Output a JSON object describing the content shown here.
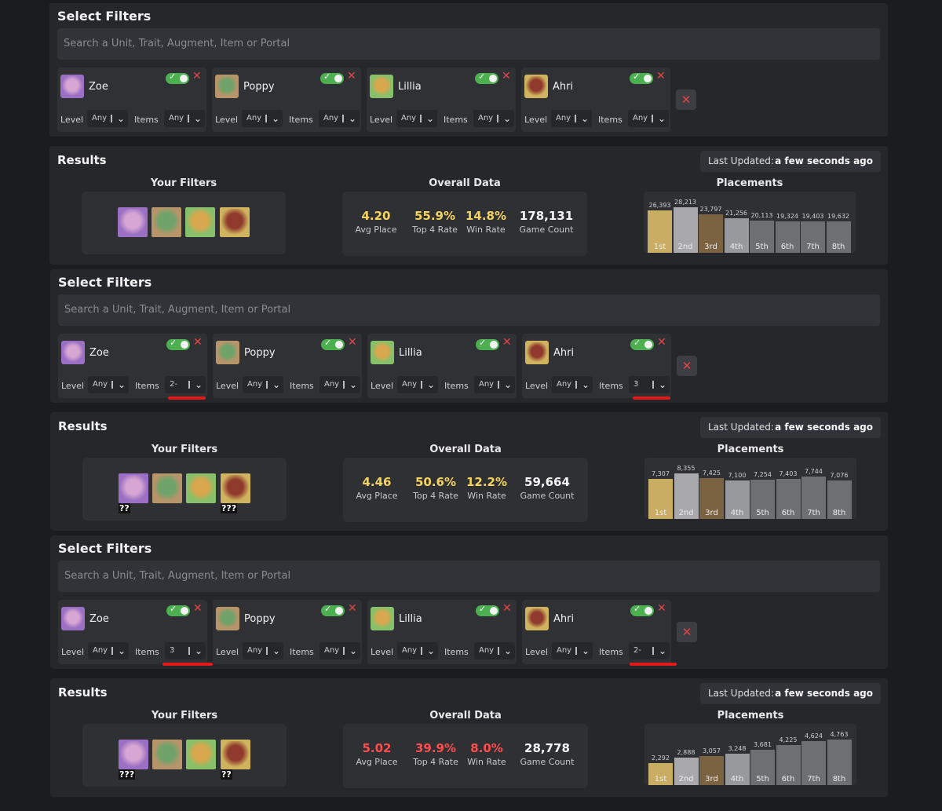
{
  "search_placeholder": "Search a Unit, Trait, Augment, Item or Portal",
  "units": [
    {
      "name": "Zoe",
      "skin": "#d7a6d3",
      "frame": "#9a6fc4"
    },
    {
      "name": "Poppy",
      "skin": "#6fa36a",
      "frame": "#b8946a"
    },
    {
      "name": "Lillia",
      "skin": "#d9a74d",
      "frame": "#86c06a"
    },
    {
      "name": "Ahri",
      "skin": "#8f3a2c",
      "frame": "#d0b35e"
    }
  ],
  "colors": {
    "yellow": "#f4d35e",
    "red": "#ff4d4d",
    "white": "#f5f5f5",
    "toggle": "#4caf50",
    "remove": "#e24545",
    "bars": [
      "#c9ad62",
      "#a9a9ab",
      "#7b6240",
      "#97999d",
      "#6e6f73",
      "#6e6f73",
      "#6e6f73",
      "#6e6f73"
    ]
  },
  "sections": [
    {
      "filters": {
        "title": "Select Filters",
        "chips": [
          {
            "unit": "Zoe",
            "level_label": "Level",
            "level_value": "Any",
            "items_label": "Items",
            "items_value": "Any"
          },
          {
            "unit": "Poppy",
            "level_label": "Level",
            "level_value": "Any",
            "items_label": "Items",
            "items_value": "Any"
          },
          {
            "unit": "Lillia",
            "level_label": "Level",
            "level_value": "Any",
            "items_label": "Items",
            "items_value": "Any"
          },
          {
            "unit": "Ahri",
            "level_label": "Level",
            "level_value": "Any",
            "items_label": "Items",
            "items_value": "Any"
          }
        ]
      },
      "results": {
        "title": "Results",
        "last_updated_label": "Last Updated:",
        "last_updated_value": "a few seconds ago",
        "your_filters": "Your Filters",
        "overall": "Overall Data",
        "placements": "Placements",
        "icon_marks": [
          "",
          "",
          "",
          ""
        ],
        "stats": [
          {
            "value": "4.20",
            "label": "Avg Place",
            "color": "yellow"
          },
          {
            "value": "55.9%",
            "label": "Top 4 Rate",
            "color": "yellow"
          },
          {
            "value": "14.8%",
            "label": "Win Rate",
            "color": "yellow"
          },
          {
            "value": "178,131",
            "label": "Game Count",
            "color": "white"
          }
        ],
        "chart_data": {
          "type": "bar",
          "categories": [
            "1st",
            "2nd",
            "3rd",
            "4th",
            "5th",
            "6th",
            "7th",
            "8th"
          ],
          "values": [
            26393,
            28213,
            23797,
            21256,
            20113,
            19324,
            19403,
            19632
          ],
          "labels": [
            "26,393",
            "28,213",
            "23,797",
            "21,256",
            "20,113",
            "19,324",
            "19,403",
            "19,632"
          ]
        }
      }
    },
    {
      "filters": {
        "title": "Select Filters",
        "chips": [
          {
            "unit": "Zoe",
            "level_label": "Level",
            "level_value": "Any",
            "items_label": "Items",
            "items_value": "2-"
          },
          {
            "unit": "Poppy",
            "level_label": "Level",
            "level_value": "Any",
            "items_label": "Items",
            "items_value": "Any"
          },
          {
            "unit": "Lillia",
            "level_label": "Level",
            "level_value": "Any",
            "items_label": "Items",
            "items_value": "Any"
          },
          {
            "unit": "Ahri",
            "level_label": "Level",
            "level_value": "Any",
            "items_label": "Items",
            "items_value": "3"
          }
        ]
      },
      "results": {
        "title": "Results",
        "last_updated_label": "Last Updated:",
        "last_updated_value": "a few seconds ago",
        "your_filters": "Your Filters",
        "overall": "Overall Data",
        "placements": "Placements",
        "icon_marks": [
          "??",
          "",
          "",
          "???"
        ],
        "stats": [
          {
            "value": "4.46",
            "label": "Avg Place",
            "color": "yellow"
          },
          {
            "value": "50.6%",
            "label": "Top 4 Rate",
            "color": "yellow"
          },
          {
            "value": "12.2%",
            "label": "Win Rate",
            "color": "yellow"
          },
          {
            "value": "59,664",
            "label": "Game Count",
            "color": "white"
          }
        ],
        "chart_data": {
          "type": "bar",
          "categories": [
            "1st",
            "2nd",
            "3rd",
            "4th",
            "5th",
            "6th",
            "7th",
            "8th"
          ],
          "values": [
            7307,
            8355,
            7425,
            7100,
            7254,
            7403,
            7744,
            7076
          ],
          "labels": [
            "7,307",
            "8,355",
            "7,425",
            "7,100",
            "7,254",
            "7,403",
            "7,744",
            "7,076"
          ]
        }
      }
    },
    {
      "filters": {
        "title": "Select Filters",
        "chips": [
          {
            "unit": "Zoe",
            "level_label": "Level",
            "level_value": "Any",
            "items_label": "Items",
            "items_value": "3"
          },
          {
            "unit": "Poppy",
            "level_label": "Level",
            "level_value": "Any",
            "items_label": "Items",
            "items_value": "Any"
          },
          {
            "unit": "Lillia",
            "level_label": "Level",
            "level_value": "Any",
            "items_label": "Items",
            "items_value": "Any"
          },
          {
            "unit": "Ahri",
            "level_label": "Level",
            "level_value": "Any",
            "items_label": "Items",
            "items_value": "2-"
          }
        ]
      },
      "results": {
        "title": "Results",
        "last_updated_label": "Last Updated:",
        "last_updated_value": "a few seconds ago",
        "your_filters": "Your Filters",
        "overall": "Overall Data",
        "placements": "Placements",
        "icon_marks": [
          "???",
          "",
          "",
          "??"
        ],
        "stats": [
          {
            "value": "5.02",
            "label": "Avg Place",
            "color": "red"
          },
          {
            "value": "39.9%",
            "label": "Top 4 Rate",
            "color": "red"
          },
          {
            "value": "8.0%",
            "label": "Win Rate",
            "color": "red"
          },
          {
            "value": "28,778",
            "label": "Game Count",
            "color": "white"
          }
        ],
        "chart_data": {
          "type": "bar",
          "categories": [
            "1st",
            "2nd",
            "3rd",
            "4th",
            "5th",
            "6th",
            "7th",
            "8th"
          ],
          "values": [
            2292,
            2888,
            3057,
            3248,
            3681,
            4225,
            4624,
            4763
          ],
          "labels": [
            "2,292",
            "2,888",
            "3,057",
            "3,248",
            "3,681",
            "4,225",
            "4,624",
            "4,763"
          ]
        }
      }
    }
  ]
}
